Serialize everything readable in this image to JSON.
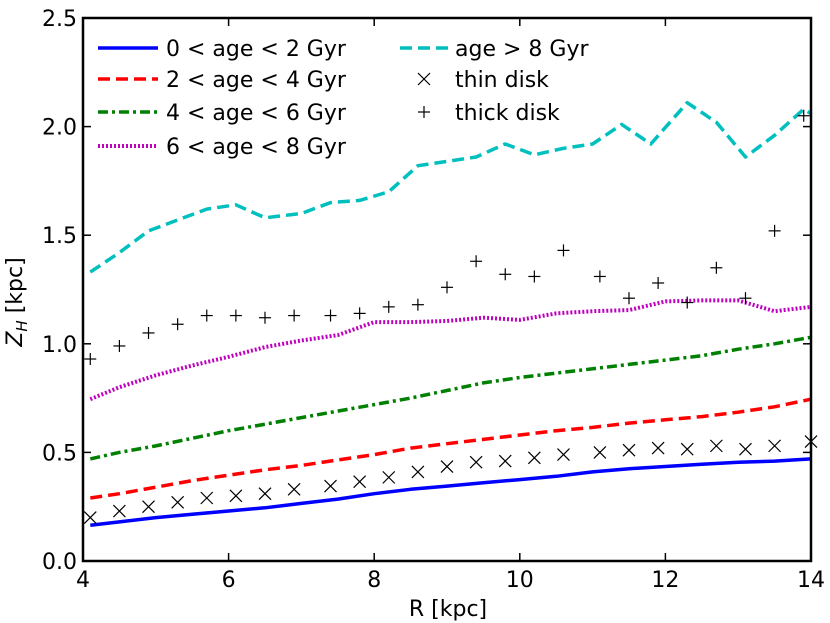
{
  "chart_data": {
    "type": "line",
    "title": "",
    "xlabel": "R [kpc]",
    "ylabel": "Z_H [kpc]",
    "xlim": [
      4,
      14
    ],
    "ylim": [
      0.0,
      2.5
    ],
    "xticks": [
      4,
      6,
      8,
      10,
      12,
      14
    ],
    "xtick_labels": [
      "4",
      "6",
      "8",
      "10",
      "12",
      "14"
    ],
    "yticks": [
      0.0,
      0.5,
      1.0,
      1.5,
      2.0,
      2.5
    ],
    "ytick_labels": [
      "0.0",
      "0.5",
      "1.0",
      "1.5",
      "2.0",
      "2.5"
    ],
    "legend_position": "top-left",
    "series": [
      {
        "name": "0 < age < 2 Gyr",
        "style": "solid",
        "color": "#0000ff",
        "x": [
          4.1,
          4.5,
          5.0,
          5.5,
          6.0,
          6.5,
          7.0,
          7.5,
          8.0,
          8.5,
          9.0,
          9.5,
          10.0,
          10.5,
          11.0,
          11.5,
          12.0,
          12.5,
          13.0,
          13.5,
          14.0
        ],
        "y": [
          0.165,
          0.18,
          0.2,
          0.215,
          0.23,
          0.245,
          0.265,
          0.285,
          0.31,
          0.33,
          0.345,
          0.36,
          0.375,
          0.39,
          0.41,
          0.425,
          0.435,
          0.445,
          0.455,
          0.46,
          0.47
        ]
      },
      {
        "name": "2 < age < 4 Gyr",
        "style": "dashed",
        "color": "#ff0000",
        "x": [
          4.1,
          4.5,
          5.0,
          5.5,
          6.0,
          6.5,
          7.0,
          7.5,
          8.0,
          8.5,
          9.0,
          9.5,
          10.0,
          10.5,
          11.0,
          11.5,
          12.0,
          12.5,
          13.0,
          13.5,
          14.0
        ],
        "y": [
          0.29,
          0.31,
          0.34,
          0.37,
          0.395,
          0.42,
          0.44,
          0.465,
          0.49,
          0.52,
          0.54,
          0.56,
          0.58,
          0.6,
          0.615,
          0.635,
          0.65,
          0.665,
          0.685,
          0.71,
          0.745
        ]
      },
      {
        "name": "4 < age < 6 Gyr",
        "style": "dashdot",
        "color": "#008000",
        "x": [
          4.1,
          4.5,
          5.0,
          5.5,
          6.0,
          6.5,
          7.0,
          7.5,
          8.0,
          8.5,
          9.0,
          9.5,
          10.0,
          10.5,
          11.0,
          11.5,
          12.0,
          12.5,
          13.0,
          13.5,
          14.0
        ],
        "y": [
          0.47,
          0.5,
          0.53,
          0.565,
          0.6,
          0.63,
          0.66,
          0.69,
          0.72,
          0.75,
          0.785,
          0.82,
          0.845,
          0.865,
          0.885,
          0.905,
          0.925,
          0.945,
          0.975,
          1.0,
          1.03
        ]
      },
      {
        "name": "6 < age < 8 Gyr",
        "style": "dotted",
        "color": "#bf00bf",
        "x": [
          4.1,
          4.5,
          5.0,
          5.5,
          6.0,
          6.5,
          7.0,
          7.5,
          8.0,
          8.5,
          9.0,
          9.5,
          10.0,
          10.5,
          11.0,
          11.5,
          12.0,
          12.5,
          13.0,
          13.5,
          14.0
        ],
        "y": [
          0.745,
          0.8,
          0.855,
          0.9,
          0.94,
          0.985,
          1.015,
          1.04,
          1.1,
          1.1,
          1.105,
          1.12,
          1.11,
          1.14,
          1.15,
          1.155,
          1.195,
          1.2,
          1.2,
          1.15,
          1.17
        ]
      },
      {
        "name": "age > 8 Gyr",
        "style": "dashed",
        "color": "#00bfbf",
        "x": [
          4.1,
          4.5,
          4.9,
          5.3,
          5.7,
          6.1,
          6.5,
          7.0,
          7.4,
          7.8,
          8.2,
          8.6,
          9.0,
          9.4,
          9.8,
          10.2,
          10.6,
          11.0,
          11.4,
          11.8,
          12.3,
          12.7,
          13.1,
          13.5,
          13.9,
          14.0
        ],
        "y": [
          1.33,
          1.42,
          1.52,
          1.57,
          1.62,
          1.64,
          1.58,
          1.6,
          1.65,
          1.66,
          1.7,
          1.82,
          1.84,
          1.86,
          1.92,
          1.87,
          1.9,
          1.92,
          2.01,
          1.92,
          2.11,
          2.02,
          1.86,
          1.96,
          2.08,
          2.06
        ]
      }
    ],
    "markers": [
      {
        "name": "thin disk",
        "marker": "x",
        "color": "#000000",
        "x": [
          4.1,
          4.5,
          4.9,
          5.3,
          5.7,
          6.1,
          6.5,
          6.9,
          7.4,
          7.8,
          8.2,
          8.6,
          9.0,
          9.4,
          9.8,
          10.2,
          10.6,
          11.1,
          11.5,
          11.9,
          12.3,
          12.7,
          13.1,
          13.5,
          14.0
        ],
        "y": [
          0.2,
          0.23,
          0.25,
          0.27,
          0.29,
          0.3,
          0.31,
          0.33,
          0.345,
          0.365,
          0.385,
          0.41,
          0.435,
          0.455,
          0.46,
          0.475,
          0.49,
          0.5,
          0.51,
          0.52,
          0.515,
          0.53,
          0.515,
          0.53,
          0.55
        ]
      },
      {
        "name": "thick disk",
        "marker": "+",
        "color": "#000000",
        "x": [
          4.1,
          4.5,
          4.9,
          5.3,
          5.7,
          6.1,
          6.5,
          6.9,
          7.4,
          7.8,
          8.2,
          8.6,
          9.0,
          9.4,
          9.8,
          10.2,
          10.6,
          11.1,
          11.5,
          11.9,
          12.3,
          12.7,
          13.1,
          13.5,
          13.9
        ],
        "y": [
          0.93,
          0.99,
          1.05,
          1.09,
          1.13,
          1.13,
          1.12,
          1.13,
          1.13,
          1.14,
          1.17,
          1.18,
          1.26,
          1.38,
          1.32,
          1.31,
          1.43,
          1.31,
          1.21,
          1.28,
          1.19,
          1.35,
          1.21,
          1.52,
          2.05
        ]
      }
    ],
    "legend": [
      {
        "label": "0 < age < 2 Gyr",
        "style": "solid",
        "color": "#0000ff"
      },
      {
        "label": "2 < age < 4 Gyr",
        "style": "dashed",
        "color": "#ff0000"
      },
      {
        "label": "4 < age < 6 Gyr",
        "style": "dashdot",
        "color": "#008000"
      },
      {
        "label": "6 < age < 8 Gyr",
        "style": "dotted",
        "color": "#bf00bf"
      },
      {
        "label": "age > 8 Gyr",
        "style": "dashed",
        "color": "#00bfbf"
      },
      {
        "label": "thin disk",
        "marker": "x",
        "color": "#000000"
      },
      {
        "label": "thick disk",
        "marker": "+",
        "color": "#000000"
      }
    ]
  }
}
